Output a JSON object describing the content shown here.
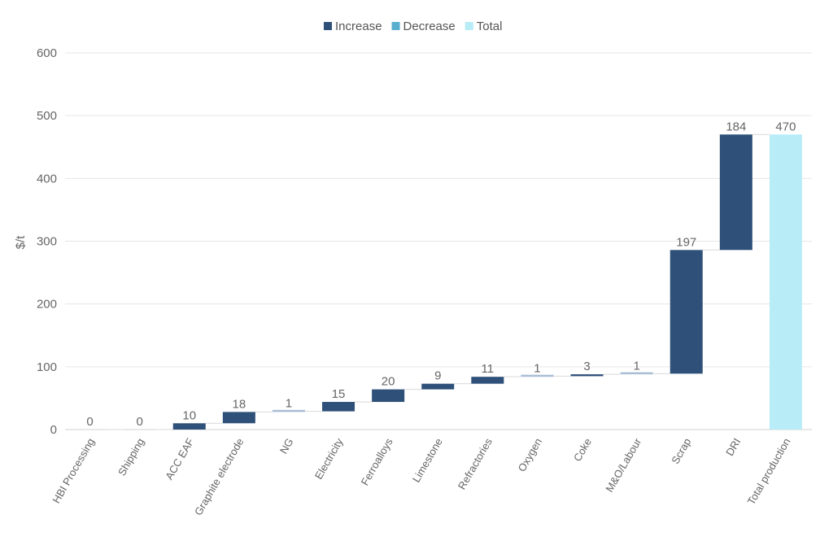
{
  "chart_data": {
    "type": "bar",
    "subtype": "waterfall",
    "ylabel": "$/t",
    "ylim": [
      0,
      600
    ],
    "yticks": [
      0,
      100,
      200,
      300,
      400,
      500,
      600
    ],
    "grid": true,
    "legend_position": "top-center",
    "legend": [
      {
        "name": "Increase",
        "color": "#2e5079"
      },
      {
        "name": "Decrease",
        "color": "#5aaecf"
      },
      {
        "name": "Total",
        "color": "#b8ecf7"
      }
    ],
    "categories": [
      "HBI Processing",
      "Shipping",
      "ACC EAF",
      "Graphite electrode",
      "NG",
      "Electricity",
      "Ferroalloys",
      "Limestone",
      "Refractories",
      "Oxygen",
      "Coke",
      "M&O/Labour",
      "Scrap",
      "DRI",
      "Total production"
    ],
    "values": [
      0,
      0,
      10,
      18,
      1,
      15,
      20,
      9,
      11,
      1,
      3,
      1,
      197,
      184,
      470
    ],
    "kinds": [
      "increase",
      "increase",
      "increase",
      "increase",
      "increase",
      "increase",
      "increase",
      "increase",
      "increase",
      "increase",
      "increase",
      "increase",
      "increase",
      "increase",
      "total"
    ]
  }
}
